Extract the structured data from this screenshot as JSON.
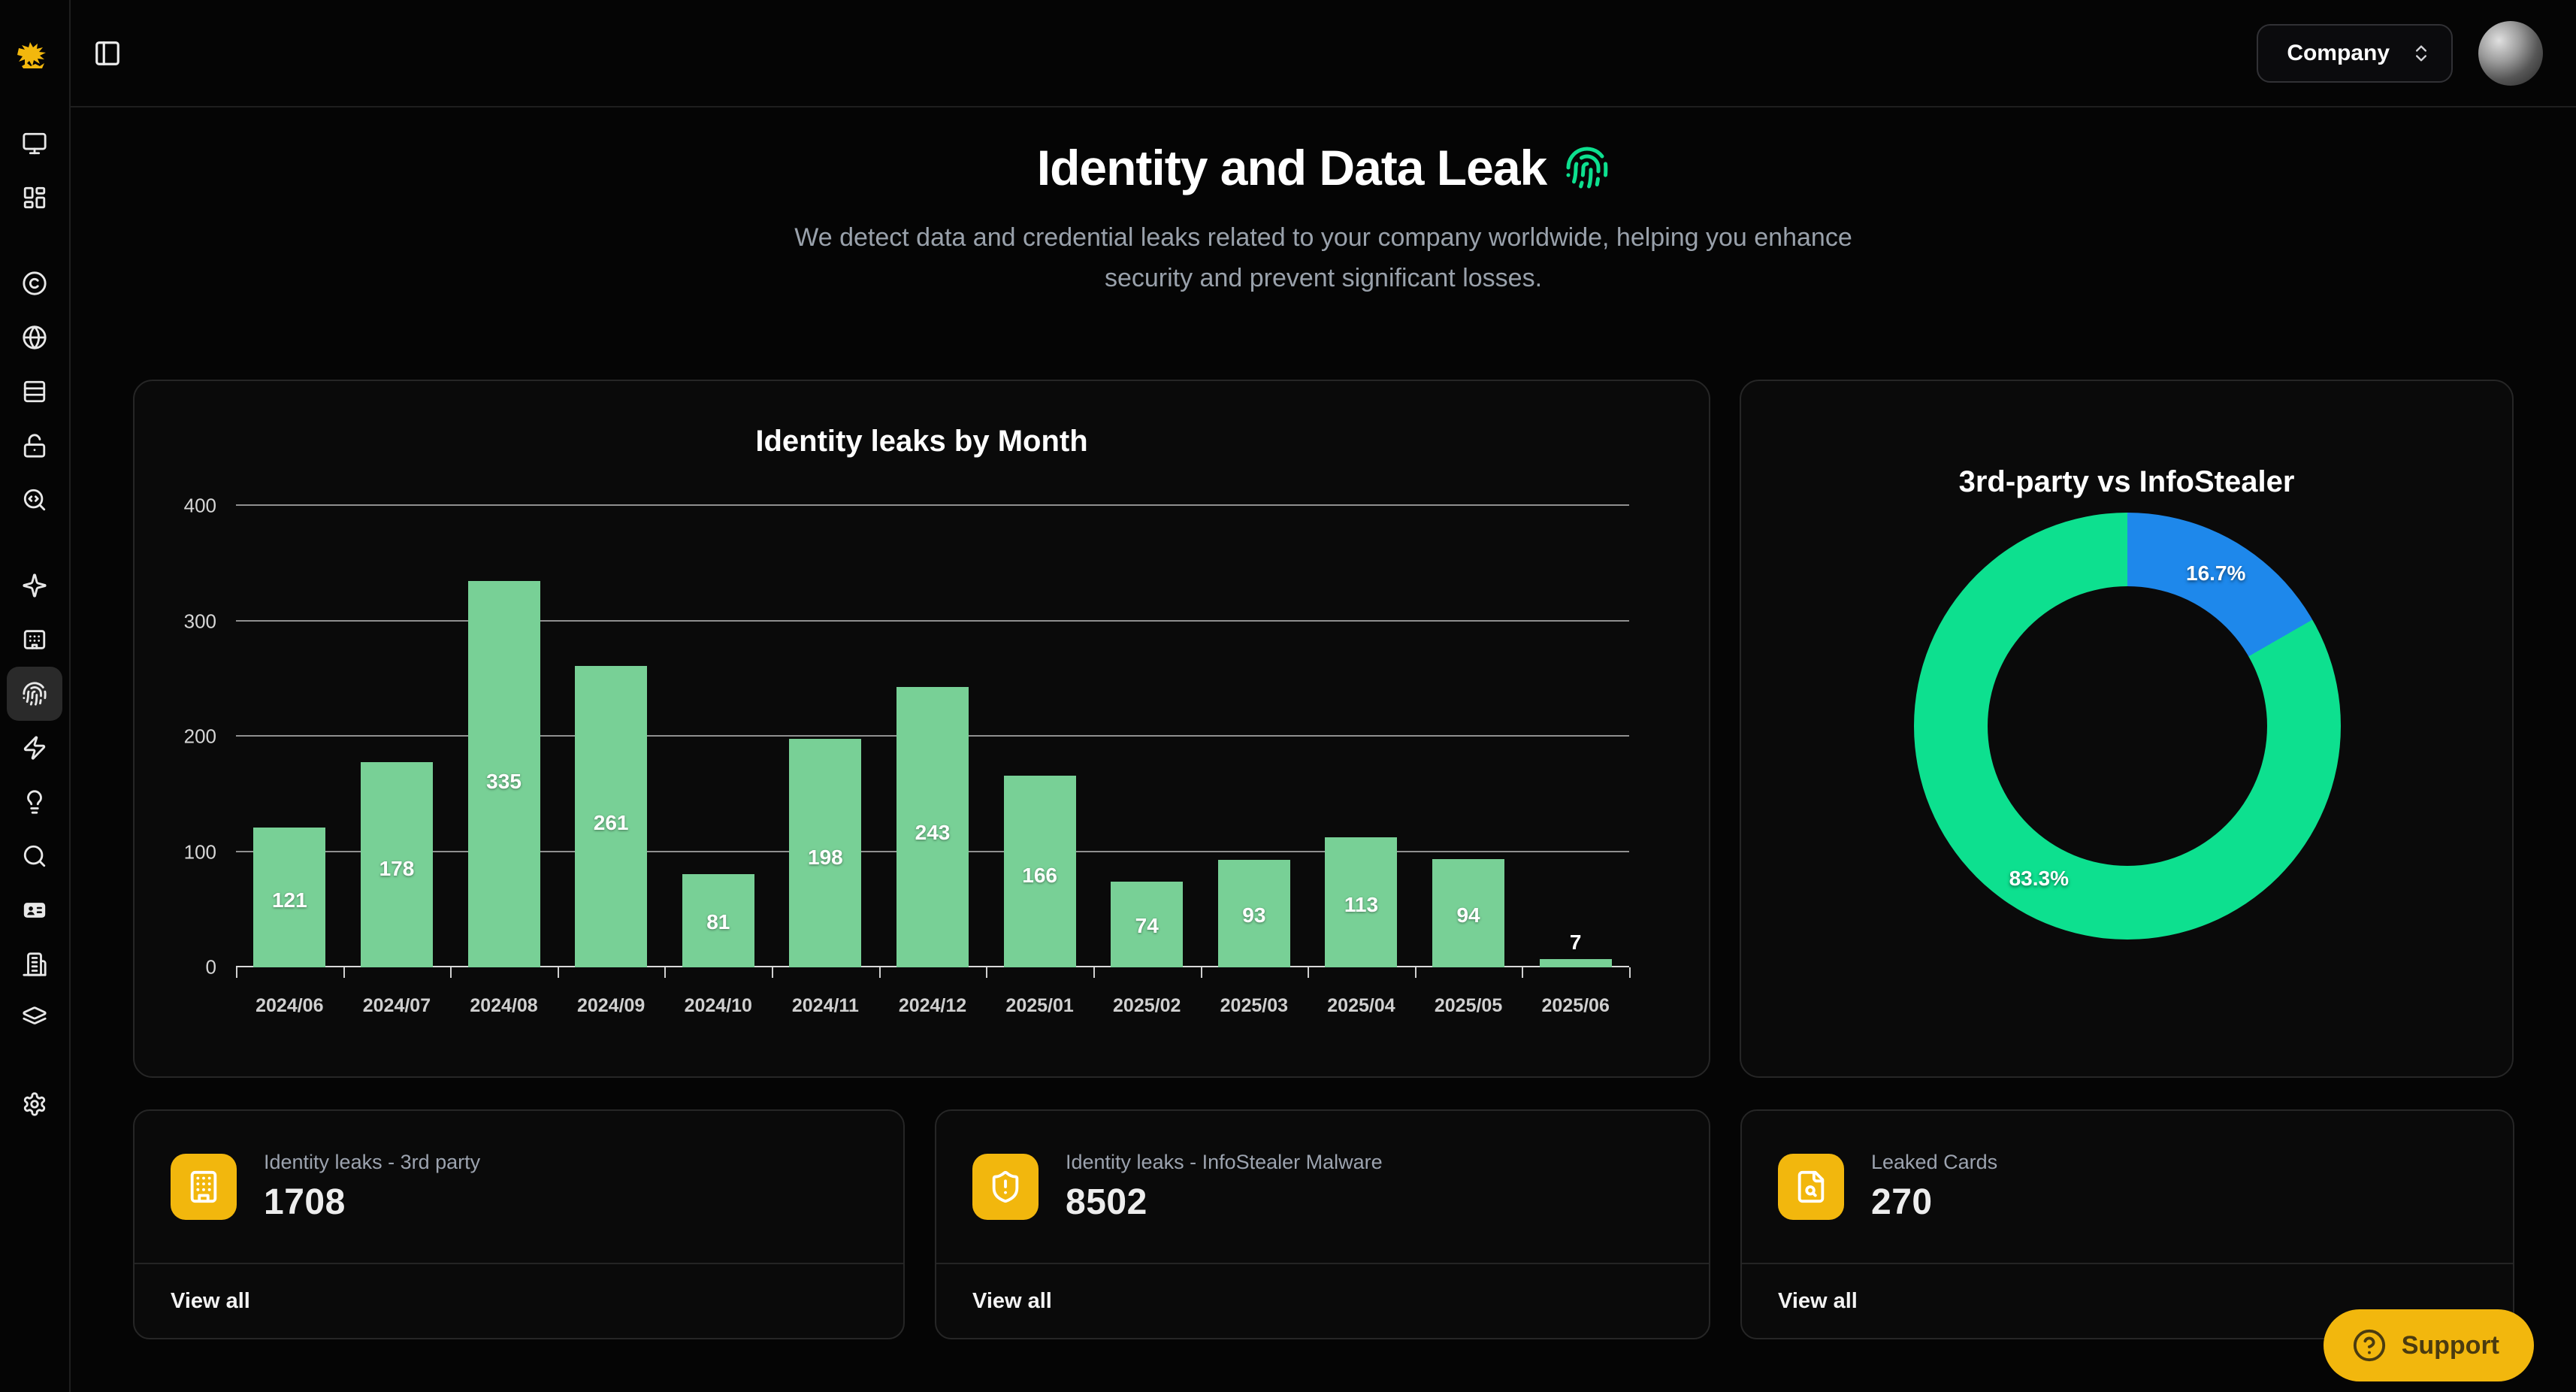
{
  "header": {
    "company_label": "Company"
  },
  "sidebar": {
    "active": "fingerprint",
    "items": [
      {
        "icon": "monitor"
      },
      {
        "icon": "layout-dashboard"
      },
      {
        "icon": "copyright"
      },
      {
        "icon": "globe"
      },
      {
        "icon": "rows"
      },
      {
        "icon": "lock-open"
      },
      {
        "icon": "search-code"
      },
      {
        "icon": "sparkle"
      },
      {
        "icon": "kiosk"
      },
      {
        "icon": "fingerprint"
      },
      {
        "icon": "zap"
      },
      {
        "icon": "lightbulb"
      },
      {
        "icon": "search"
      },
      {
        "icon": "id-card"
      },
      {
        "icon": "building-2"
      },
      {
        "icon": "layers"
      },
      {
        "icon": "settings"
      }
    ]
  },
  "page": {
    "title": "Identity and Data Leak",
    "subtitle": "We detect data and credential leaks related to your company worldwide, helping you enhance security and prevent significant losses."
  },
  "chart_data": [
    {
      "type": "bar",
      "title": "Identity leaks by Month",
      "categories": [
        "2024/06",
        "2024/07",
        "2024/08",
        "2024/09",
        "2024/10",
        "2024/11",
        "2024/12",
        "2025/01",
        "2025/02",
        "2025/03",
        "2025/04",
        "2025/05",
        "2025/06"
      ],
      "values": [
        121,
        178,
        335,
        261,
        81,
        198,
        243,
        166,
        74,
        93,
        113,
        94,
        7
      ],
      "xlabel": "",
      "ylabel": "",
      "ylim": [
        0,
        400
      ],
      "yticks": [
        0,
        100,
        200,
        300,
        400
      ],
      "grid": true,
      "legend": false,
      "bar_color": "#78d096"
    },
    {
      "type": "pie",
      "title": "3rd-party vs InfoStealer",
      "donut": true,
      "start_angle": "top",
      "direction": "clockwise",
      "slices": [
        {
          "name": "3rd-party",
          "label": "16.7%",
          "value": 16.7,
          "color": "#1e88eb"
        },
        {
          "name": "InfoStealer",
          "label": "83.3%",
          "value": 83.3,
          "color": "#0de08f"
        }
      ]
    }
  ],
  "cards": [
    {
      "icon": "building",
      "label": "Identity leaks - 3rd party",
      "value": "1708",
      "action": "View all"
    },
    {
      "icon": "shield-alert",
      "label": "Identity leaks - InfoStealer Malware",
      "value": "8502",
      "action": "View all"
    },
    {
      "icon": "file-search",
      "label": "Leaked Cards",
      "value": "270",
      "action": "View all"
    }
  ],
  "support": {
    "label": "Support"
  },
  "colors": {
    "accent_yellow": "#f2b70d",
    "bar_green": "#78d096",
    "donut_green": "#0de08f",
    "donut_blue": "#1e88eb",
    "card_bg": "#0a0a0a"
  }
}
